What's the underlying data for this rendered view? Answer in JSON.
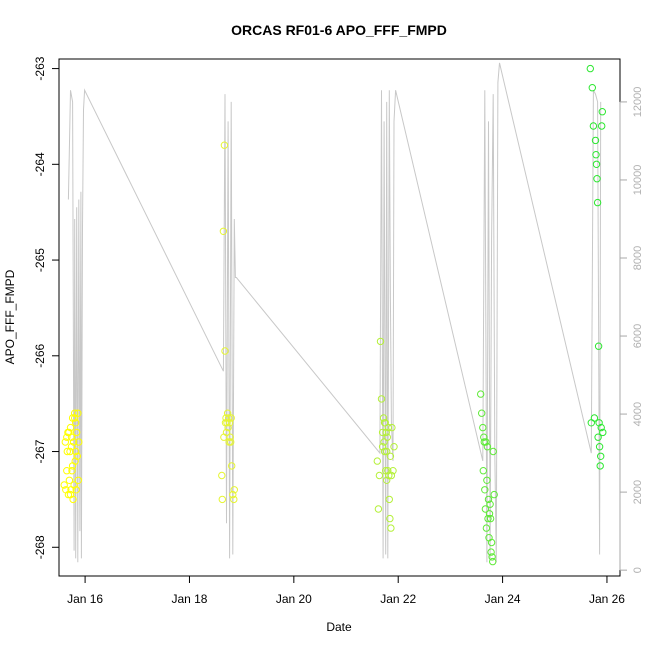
{
  "chart_data": {
    "type": "scatter",
    "title": "ORCAS RF01-6 APO_FFF_FMPD",
    "xlabel": "Date",
    "ylabel": "APO_FFF_FMPD",
    "x_unit": "days since Jan 15 00:00 (tick labels show dates)",
    "xlim": [
      0.5,
      11.25
    ],
    "ylim": [
      -268.3,
      -262.9
    ],
    "y2lim": [
      -150,
      13100
    ],
    "x_ticks": [
      {
        "value": 1,
        "label": "Jan 16"
      },
      {
        "value": 3,
        "label": "Jan 18"
      },
      {
        "value": 5,
        "label": "Jan 20"
      },
      {
        "value": 7,
        "label": "Jan 22"
      },
      {
        "value": 9,
        "label": "Jan 24"
      },
      {
        "value": 11,
        "label": "Jan 26"
      }
    ],
    "y_ticks": [
      {
        "value": -263,
        "label": "-263"
      },
      {
        "value": -264,
        "label": "-264"
      },
      {
        "value": -265,
        "label": "-265"
      },
      {
        "value": -266,
        "label": "-266"
      },
      {
        "value": -267,
        "label": "-267"
      },
      {
        "value": -268,
        "label": "-268"
      }
    ],
    "y2_ticks": [
      {
        "value": 0,
        "label": "0"
      },
      {
        "value": 2000,
        "label": "2000"
      },
      {
        "value": 4000,
        "label": "4000"
      },
      {
        "value": 6000,
        "label": "6000"
      },
      {
        "value": 8000,
        "label": "8000"
      },
      {
        "value": 10000,
        "label": "10000"
      },
      {
        "value": 12000,
        "label": "12000"
      }
    ],
    "secondary_series": {
      "name": "",
      "color": "#c8c8c8",
      "axis": "right",
      "x": [
        0.68,
        0.72,
        0.76,
        0.79,
        0.8,
        0.82,
        0.84,
        0.86,
        0.88,
        0.9,
        0.92,
        0.93,
        0.95,
        0.97,
        0.99,
        3.65,
        3.68,
        3.71,
        3.74,
        3.77,
        3.8,
        3.83,
        3.86,
        3.88,
        3.9,
        6.65,
        6.68,
        6.71,
        6.73,
        6.76,
        6.78,
        6.8,
        6.83,
        6.85,
        6.87,
        6.9,
        6.92,
        6.95,
        8.62,
        8.66,
        8.7,
        8.73,
        8.76,
        8.79,
        8.82,
        8.85,
        8.88,
        8.91,
        8.94,
        10.7,
        10.74,
        10.78,
        10.82,
        10.86,
        10.88
      ],
      "values": [
        9500,
        12300,
        12000,
        500,
        9000,
        300,
        9300,
        200,
        9500,
        1000,
        9700,
        300,
        8800,
        11800,
        12300,
        5100,
        12200,
        1200,
        11500,
        300,
        12000,
        400,
        9000,
        7500,
        7500,
        3000,
        12300,
        300,
        11500,
        400,
        12000,
        300,
        12300,
        7000,
        3800,
        2800,
        11500,
        12300,
        2800,
        12300,
        200,
        11500,
        300,
        8500,
        12200,
        3000,
        200,
        12500,
        13000,
        3000,
        12300,
        12200,
        12000,
        400,
        12000
      ]
    },
    "series": [
      {
        "name": "",
        "color": "#ffff00",
        "x": [
          0.6,
          0.62,
          0.63,
          0.65,
          0.66,
          0.68,
          0.69,
          0.7,
          0.71,
          0.72,
          0.73,
          0.74,
          0.75,
          0.76,
          0.77,
          0.78,
          0.79,
          0.8,
          0.81,
          0.82,
          0.83,
          0.84,
          0.85,
          0.86,
          0.87,
          0.88,
          0.72,
          0.74,
          0.76,
          0.8,
          0.82,
          0.65,
          0.67
        ],
        "values": [
          -267.35,
          -266.9,
          -267.4,
          -266.85,
          -267.0,
          -267.45,
          -266.8,
          -267.3,
          -267.0,
          -266.75,
          -267.4,
          -266.85,
          -267.2,
          -266.65,
          -267.5,
          -266.9,
          -267.35,
          -266.6,
          -267.1,
          -266.7,
          -267.4,
          -266.8,
          -267.05,
          -266.6,
          -267.3,
          -266.9,
          -267.45,
          -266.95,
          -267.15,
          -266.65,
          -267.0,
          -267.2,
          -266.8
        ]
      },
      {
        "name": "",
        "color": "#e6f533",
        "x": [
          3.62,
          3.63,
          3.65,
          3.66,
          3.67,
          3.68,
          3.69,
          3.7,
          3.71,
          3.72,
          3.73,
          3.74,
          3.75,
          3.76,
          3.77,
          3.78,
          3.79,
          3.8,
          3.81,
          3.83,
          3.85,
          3.86
        ],
        "values": [
          -267.25,
          -267.5,
          -264.7,
          -266.85,
          -263.8,
          -265.95,
          -266.7,
          -266.65,
          -266.8,
          -266.7,
          -266.6,
          -266.75,
          -266.65,
          -266.9,
          -266.7,
          -266.85,
          -266.9,
          -266.65,
          -267.15,
          -267.45,
          -267.5,
          -267.4
        ]
      },
      {
        "name": "",
        "color": "#b5f03a",
        "x": [
          6.6,
          6.62,
          6.64,
          6.66,
          6.68,
          6.7,
          6.72,
          6.73,
          6.74,
          6.75,
          6.76,
          6.77,
          6.78,
          6.79,
          6.8,
          6.81,
          6.82,
          6.83,
          6.84,
          6.85,
          6.86,
          6.87,
          6.88,
          6.9,
          6.92,
          6.7,
          6.74,
          6.78
        ],
        "values": [
          -267.1,
          -267.6,
          -267.25,
          -265.85,
          -266.45,
          -266.8,
          -266.65,
          -266.9,
          -267.0,
          -266.7,
          -267.2,
          -266.8,
          -267.3,
          -266.85,
          -267.2,
          -266.75,
          -267.25,
          -267.5,
          -267.7,
          -267.05,
          -267.8,
          -267.25,
          -266.75,
          -267.2,
          -266.95,
          -266.95,
          -266.7,
          -267.0
        ]
      },
      {
        "name": "",
        "color": "#5fea38",
        "x": [
          8.58,
          8.6,
          8.62,
          8.63,
          8.64,
          8.65,
          8.66,
          8.67,
          8.68,
          8.69,
          8.7,
          8.71,
          8.72,
          8.73,
          8.74,
          8.75,
          8.76,
          8.77,
          8.78,
          8.79,
          8.8,
          8.81,
          8.82,
          8.84
        ],
        "values": [
          -266.4,
          -266.6,
          -266.75,
          -267.2,
          -266.85,
          -266.9,
          -267.4,
          -267.6,
          -266.9,
          -267.8,
          -267.3,
          -266.95,
          -267.7,
          -267.5,
          -267.9,
          -267.65,
          -267.55,
          -267.7,
          -268.05,
          -267.95,
          -268.1,
          -268.15,
          -267.0,
          -267.45
        ]
      },
      {
        "name": "",
        "color": "#2ce830",
        "x": [
          10.68,
          10.7,
          10.72,
          10.74,
          10.76,
          10.78,
          10.79,
          10.8,
          10.81,
          10.82,
          10.83,
          10.84,
          10.85,
          10.86,
          10.87,
          10.88,
          10.89,
          10.9,
          10.91,
          10.92
        ],
        "values": [
          -263.0,
          -266.7,
          -263.2,
          -263.6,
          -266.65,
          -263.75,
          -263.9,
          -264.0,
          -264.15,
          -264.4,
          -266.85,
          -265.9,
          -266.7,
          -266.95,
          -267.15,
          -267.05,
          -266.75,
          -263.6,
          -263.45,
          -266.8
        ]
      }
    ]
  }
}
